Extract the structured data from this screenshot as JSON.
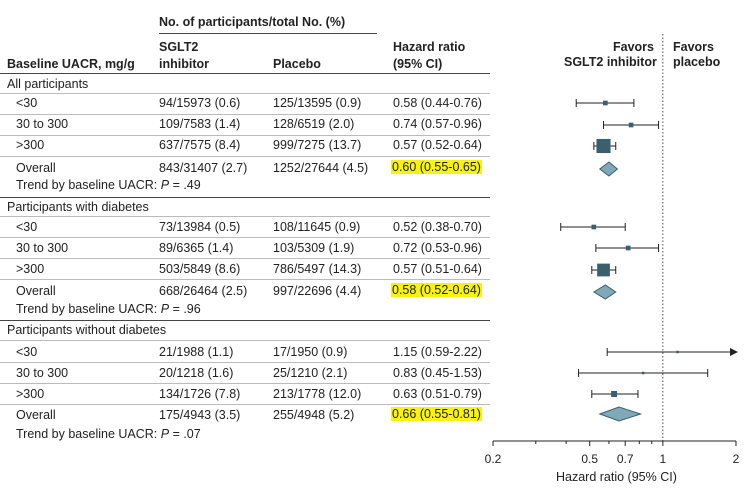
{
  "header": {
    "group_header": "No. of participants/total No. (%)",
    "col_uacr": "Baseline UACR, mg/g",
    "col_sglt2": [
      "SGLT2",
      "inhibitor"
    ],
    "col_placebo": "Placebo",
    "col_hr": [
      "Hazard ratio",
      "(95% CI)"
    ],
    "favors_left": [
      "Favors",
      "SGLT2 inhibitor"
    ],
    "favors_right": [
      "Favors",
      "placebo"
    ]
  },
  "groups": [
    {
      "title": "All participants",
      "trend": "Trend by baseline UACR: ",
      "trend_p": "P",
      "trend_val": " = .49",
      "rows": [
        {
          "label": "<30",
          "sglt2": "94/15973 (0.6)",
          "placebo": "125/13595 (0.9)",
          "hr_text": "0.58 (0.44-0.76)",
          "highlight": false
        },
        {
          "label": "30 to 300",
          "sglt2": "109/7583 (1.4)",
          "placebo": "128/6519 (2.0)",
          "hr_text": "0.74 (0.57-0.96)",
          "highlight": false
        },
        {
          "label": ">300",
          "sglt2": "637/7575 (8.4)",
          "placebo": "999/7275 (13.7)",
          "hr_text": "0.57 (0.52-0.64)",
          "highlight": false
        },
        {
          "label": "Overall",
          "sglt2": "843/31407 (2.7)",
          "placebo": "1252/27644 (4.5)",
          "hr_text": "0.60 (0.55-0.65)",
          "highlight": true
        }
      ]
    },
    {
      "title": "Participants with diabetes",
      "trend": "Trend by baseline UACR: ",
      "trend_p": "P",
      "trend_val": " = .96",
      "rows": [
        {
          "label": "<30",
          "sglt2": "73/13984 (0.5)",
          "placebo": "108/11645 (0.9)",
          "hr_text": "0.52 (0.38-0.70)",
          "highlight": false
        },
        {
          "label": "30 to 300",
          "sglt2": "89/6365 (1.4)",
          "placebo": "103/5309 (1.9)",
          "hr_text": "0.72 (0.53-0.96)",
          "highlight": false
        },
        {
          "label": ">300",
          "sglt2": "503/5849 (8.6)",
          "placebo": "786/5497 (14.3)",
          "hr_text": "0.57 (0.51-0.64)",
          "highlight": false
        },
        {
          "label": "Overall",
          "sglt2": "668/26464 (2.5)",
          "placebo": "997/22696 (4.4)",
          "hr_text": "0.58 (0.52-0.64)",
          "highlight": true
        }
      ]
    },
    {
      "title": "Participants without diabetes",
      "trend": "Trend by baseline UACR: ",
      "trend_p": "P",
      "trend_val": " = .07",
      "rows": [
        {
          "label": "<30",
          "sglt2": "21/1988 (1.1)",
          "placebo": "17/1950 (0.9)",
          "hr_text": "1.15 (0.59-2.22)",
          "highlight": false
        },
        {
          "label": "30 to 300",
          "sglt2": "20/1218 (1.6)",
          "placebo": "25/1210 (2.1)",
          "hr_text": "0.83 (0.45-1.53)",
          "highlight": false
        },
        {
          "label": ">300",
          "sglt2": "134/1726 (7.8)",
          "placebo": "213/1778 (12.0)",
          "hr_text": "0.63 (0.51-0.79)",
          "highlight": false
        },
        {
          "label": "Overall",
          "sglt2": "175/4943 (3.5)",
          "placebo": "255/4948 (5.2)",
          "hr_text": "0.66 (0.55-0.81)",
          "highlight": true
        }
      ]
    }
  ],
  "chart_data": {
    "type": "forest",
    "xscale": "log",
    "xlim": [
      0.2,
      2
    ],
    "xticks": [
      0.2,
      0.5,
      0.7,
      1,
      2
    ],
    "xtick_labels": [
      "0.2",
      "0.5",
      "0.7",
      "1",
      "2"
    ],
    "xlabel": "Hazard ratio (95% CI)",
    "reference_line": 1,
    "series": [
      {
        "group": "All participants",
        "points": [
          {
            "label": "<30",
            "hr": 0.58,
            "lo": 0.44,
            "hi": 0.76,
            "weight": 0.06
          },
          {
            "label": "30 to 300",
            "hr": 0.74,
            "lo": 0.57,
            "hi": 0.96,
            "weight": 0.06
          },
          {
            "label": ">300",
            "hr": 0.57,
            "lo": 0.52,
            "hi": 0.64,
            "weight": 0.55
          },
          {
            "label": "Overall",
            "hr": 0.6,
            "lo": 0.55,
            "hi": 0.65,
            "summary": true
          }
        ]
      },
      {
        "group": "Participants with diabetes",
        "points": [
          {
            "label": "<30",
            "hr": 0.52,
            "lo": 0.38,
            "hi": 0.7,
            "weight": 0.06
          },
          {
            "label": "30 to 300",
            "hr": 0.72,
            "lo": 0.53,
            "hi": 0.96,
            "weight": 0.06
          },
          {
            "label": ">300",
            "hr": 0.57,
            "lo": 0.51,
            "hi": 0.64,
            "weight": 0.45
          },
          {
            "label": "Overall",
            "hr": 0.58,
            "lo": 0.52,
            "hi": 0.64,
            "summary": true
          }
        ]
      },
      {
        "group": "Participants without diabetes",
        "points": [
          {
            "label": "<30",
            "hr": 1.15,
            "lo": 0.59,
            "hi": 2.22,
            "weight": 0.01
          },
          {
            "label": "30 to 300",
            "hr": 0.83,
            "lo": 0.45,
            "hi": 1.53,
            "weight": 0.01
          },
          {
            "label": ">300",
            "hr": 0.63,
            "lo": 0.51,
            "hi": 0.79,
            "weight": 0.1
          },
          {
            "label": "Overall",
            "hr": 0.66,
            "lo": 0.55,
            "hi": 0.81,
            "summary": true
          }
        ]
      }
    ]
  },
  "colors": {
    "marker": "#3a5f6e",
    "diamond": "#7fa8b8",
    "diamond_stroke": "#3a5f6e",
    "highlight": "#f7f20f",
    "text": "#222222"
  }
}
